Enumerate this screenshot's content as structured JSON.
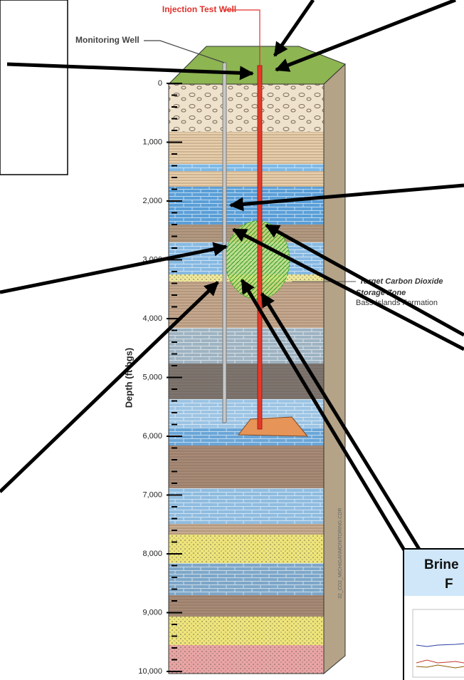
{
  "labels": {
    "injection_well": "Injection Test Well",
    "monitoring_well": "Monitoring Well",
    "target_zone_line1": "Target Carbon Dioxide",
    "target_zone_line2": "Storage Zone",
    "formation": "Bass Islands Formation",
    "drawing_id": "32_CO2_MICHIGANMONITORING.CDR"
  },
  "depth_axis": {
    "title": "Depth (ft bgs)",
    "ticks": [
      "0",
      "1,000",
      "2,000",
      "3,000",
      "4,000",
      "5,000",
      "6,000",
      "7,000",
      "8,000",
      "9,000",
      "10,000"
    ]
  },
  "inset": {
    "title_lines": [
      "Brine",
      "F"
    ]
  }
}
